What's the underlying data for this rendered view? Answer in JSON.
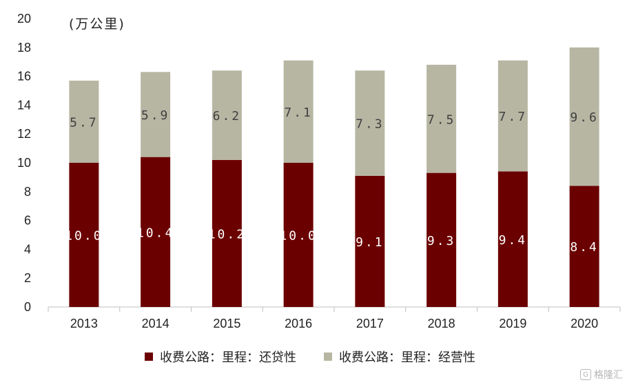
{
  "unit_label": "(万公里)",
  "legend": [
    {
      "label": "收费公路：里程：还贷性",
      "color": "#6b0000"
    },
    {
      "label": "收费公路：里程：经营性",
      "color": "#b7b6a3"
    }
  ],
  "watermark": {
    "logo": "G",
    "text": "格隆汇"
  },
  "chart_data": {
    "type": "bar",
    "stacked": true,
    "categories": [
      "2013",
      "2014",
      "2015",
      "2016",
      "2017",
      "2018",
      "2019",
      "2020"
    ],
    "series": [
      {
        "name": "收费公路：里程：还贷性",
        "color": "#6b0000",
        "label_color": "#ffffff",
        "values": [
          10.0,
          10.4,
          10.2,
          10.0,
          9.1,
          9.3,
          9.4,
          8.4
        ],
        "labels": [
          "10.0",
          "10.4",
          "10.2",
          "10.0",
          "9.1",
          "9.3",
          "9.4",
          "8.4"
        ]
      },
      {
        "name": "收费公路：里程：经营性",
        "color": "#b7b6a3",
        "label_color": "#404040",
        "values": [
          5.7,
          5.9,
          6.2,
          7.1,
          7.3,
          7.5,
          7.7,
          9.6
        ],
        "labels": [
          "5.7",
          "5.9",
          "6.2",
          "7.1",
          "7.3",
          "7.5",
          "7.7",
          "9.6"
        ]
      }
    ],
    "ylim": [
      0,
      20
    ],
    "yticks": [
      "0",
      "2",
      "4",
      "6",
      "8",
      "10",
      "12",
      "14",
      "16",
      "18",
      "20"
    ],
    "grid": false,
    "legend_position": "bottom"
  }
}
